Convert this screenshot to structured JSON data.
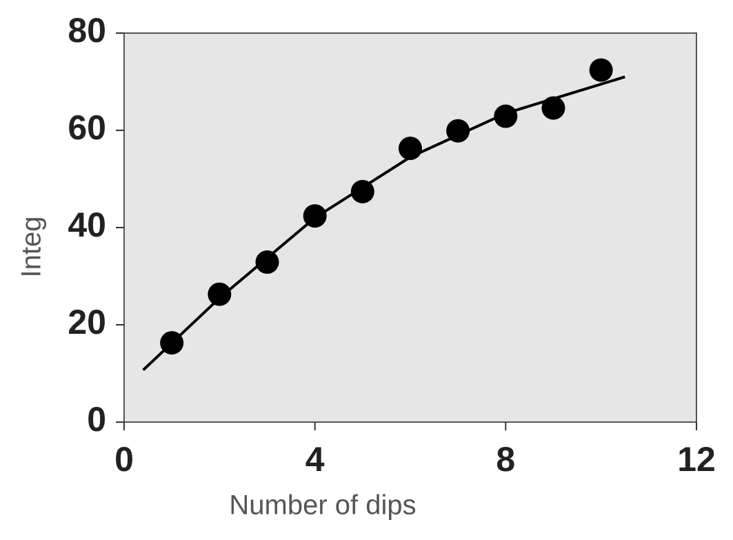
{
  "chart_data": {
    "type": "scatter",
    "x_label": "Number of dips",
    "y_label": "Integ",
    "points": {
      "x": [
        1,
        2,
        3,
        4,
        5,
        6,
        7,
        8,
        9,
        10
      ],
      "y": [
        16.3,
        26.3,
        32.9,
        42.4,
        47.4,
        56.3,
        59.9,
        62.9,
        64.6,
        72.4
      ],
      "color": "#000000"
    },
    "fit": {
      "x": [
        0.4,
        2,
        4,
        6,
        8,
        10.5
      ],
      "y": [
        10.7,
        25.5,
        42,
        54.5,
        63.5,
        71
      ],
      "color": "#000000"
    },
    "xlim": [
      0,
      12
    ],
    "xticks": [
      0,
      4,
      8,
      12
    ],
    "ylim": [
      0,
      80
    ],
    "yticks": [
      0,
      20,
      40,
      60,
      80
    ],
    "plot_background": "#e6e6e6"
  }
}
